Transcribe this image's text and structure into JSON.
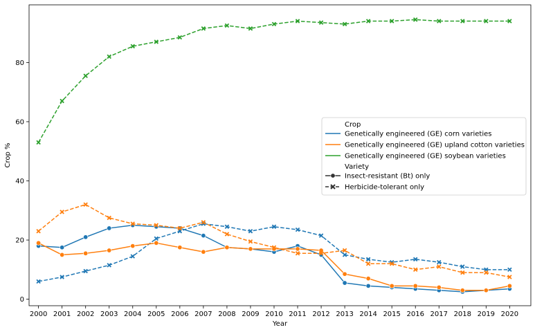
{
  "chart_data": {
    "type": "line",
    "xlabel": "Year",
    "ylabel": "Crop %",
    "xlim": [
      1999.6,
      2020.9
    ],
    "ylim": [
      -2.2,
      99.5
    ],
    "yticks": [
      0,
      20,
      40,
      60,
      80
    ],
    "x": [
      2000,
      2001,
      2002,
      2003,
      2004,
      2005,
      2006,
      2007,
      2008,
      2009,
      2010,
      2011,
      2012,
      2013,
      2014,
      2015,
      2016,
      2017,
      2018,
      2019,
      2020
    ],
    "x_tick_labels": [
      "2000",
      "2001",
      "2002",
      "2003",
      "2004",
      "2005",
      "2006",
      "2007",
      "2008",
      "2009",
      "2010",
      "2011",
      "2012",
      "2013",
      "2014",
      "2015",
      "2016",
      "2017",
      "2018",
      "2019",
      "2020"
    ],
    "grid": false,
    "legend": {
      "placement": "center-right",
      "hue_title": "Crop",
      "style_title": "Variety",
      "crops": [
        {
          "label": "Genetically engineered (GE) corn varieties",
          "color": "#1f77b4"
        },
        {
          "label": "Genetically engineered (GE) upland cotton varieties",
          "color": "#ff7f0e"
        },
        {
          "label": "Genetically engineered (GE) soybean varieties",
          "color": "#2ca02c"
        }
      ],
      "varieties": [
        {
          "label": "Insect-resistant (Bt) only",
          "marker": "circle",
          "dash": "solid"
        },
        {
          "label": "Herbicide-tolerant only",
          "marker": "x",
          "dash": "dashed"
        }
      ]
    },
    "series": [
      {
        "crop": 0,
        "variety": 0,
        "values": [
          18,
          17.5,
          21,
          24,
          25,
          24.5,
          24,
          21.5,
          17.5,
          17,
          16,
          18,
          15,
          5.5,
          4.5,
          4,
          3.5,
          3,
          2.5,
          3,
          3.5
        ]
      },
      {
        "crop": 0,
        "variety": 1,
        "values": [
          6,
          7.5,
          9.5,
          11.5,
          14.5,
          20.5,
          23,
          25.5,
          24.5,
          23,
          24.5,
          23.5,
          21.5,
          15,
          13.5,
          12.5,
          13.5,
          12.5,
          11,
          10,
          10
        ]
      },
      {
        "crop": 1,
        "variety": 0,
        "values": [
          19,
          15,
          15.5,
          16.5,
          18,
          19,
          17.5,
          16,
          17.5,
          17,
          17,
          17,
          16.5,
          8.5,
          7,
          4.5,
          4.5,
          4,
          3,
          3,
          4.5
        ]
      },
      {
        "crop": 1,
        "variety": 1,
        "values": [
          23,
          29.5,
          32,
          27.5,
          25.5,
          25,
          24,
          26,
          22,
          19.5,
          17.5,
          15.5,
          15.5,
          16.5,
          12,
          12,
          10,
          11,
          9,
          9,
          7.5
        ]
      },
      {
        "crop": 2,
        "variety": 1,
        "values": [
          53,
          67,
          75.5,
          82,
          85.5,
          87,
          88.5,
          91.5,
          92.5,
          91.5,
          93,
          94,
          93.5,
          93,
          94,
          94,
          94.5,
          94,
          94,
          94,
          94
        ]
      }
    ]
  }
}
